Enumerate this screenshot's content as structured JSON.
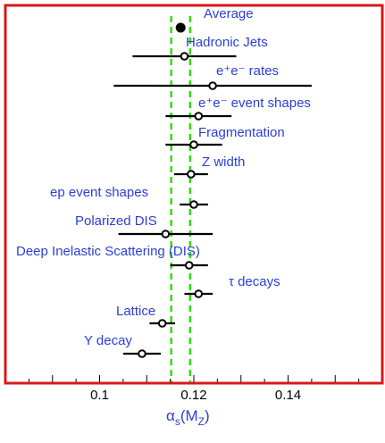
{
  "chart_data": {
    "type": "scatter",
    "title": "",
    "xlabel": "αs(MZ)",
    "xlabel_main": "α",
    "xlabel_sub1": "s",
    "xlabel_paren_open": "(M",
    "xlabel_sub2": "Z",
    "xlabel_paren_close": ")",
    "ylabel": "",
    "xlim": [
      0.08,
      0.16
    ],
    "xticks": [
      0.1,
      0.12,
      0.14
    ],
    "xtick_labels": [
      "0.1",
      "0.12",
      "0.14"
    ],
    "average_band": [
      0.1152,
      0.1192
    ],
    "colors": {
      "frame": "#d7191c",
      "band": "#33dd11",
      "label": "#2b3fd6",
      "marker": "#000000"
    },
    "points": [
      {
        "label": "Average",
        "value": 0.1172,
        "err_lo": 0.001,
        "err_hi": 0.001,
        "filled": true
      },
      {
        "label": "Hadronic Jets",
        "value": 0.118,
        "err_lo": 0.011,
        "err_hi": 0.011,
        "filled": false
      },
      {
        "label": "e⁺e⁻ rates",
        "value": 0.124,
        "err_lo": 0.021,
        "err_hi": 0.021,
        "filled": false
      },
      {
        "label": "e⁺e⁻ event shapes",
        "value": 0.121,
        "err_lo": 0.007,
        "err_hi": 0.007,
        "filled": false
      },
      {
        "label": "Fragmentation",
        "value": 0.12,
        "err_lo": 0.006,
        "err_hi": 0.006,
        "filled": false
      },
      {
        "label": "Z width",
        "value": 0.1194,
        "err_lo": 0.0036,
        "err_hi": 0.0036,
        "filled": false
      },
      {
        "label": "ep event shapes",
        "value": 0.12,
        "err_lo": 0.003,
        "err_hi": 0.003,
        "filled": false
      },
      {
        "label": "Polarized DIS",
        "value": 0.114,
        "err_lo": 0.01,
        "err_hi": 0.01,
        "filled": false
      },
      {
        "label": "Deep Inelastic Scattering (DIS)",
        "value": 0.119,
        "err_lo": 0.004,
        "err_hi": 0.004,
        "filled": false
      },
      {
        "label": "τ decays",
        "value": 0.121,
        "err_lo": 0.003,
        "err_hi": 0.003,
        "filled": false
      },
      {
        "label": "Lattice",
        "value": 0.1133,
        "err_lo": 0.0027,
        "err_hi": 0.0027,
        "filled": false
      },
      {
        "label": "Υ decay",
        "value": 0.109,
        "err_lo": 0.004,
        "err_hi": 0.004,
        "filled": false
      }
    ]
  }
}
